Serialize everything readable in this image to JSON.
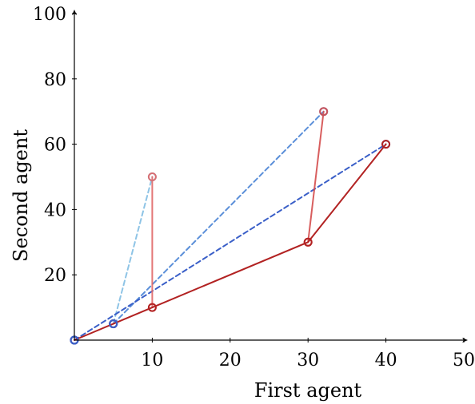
{
  "chart_data": {
    "type": "line",
    "xlabel": "First agent",
    "ylabel": "Second agent",
    "xlim": [
      0,
      50
    ],
    "ylim": [
      0,
      100
    ],
    "x_ticks": [
      10,
      20,
      30,
      40,
      50
    ],
    "y_ticks": [
      20,
      40,
      60,
      80,
      100
    ],
    "grid": false,
    "series": [
      {
        "style": "solid",
        "color": "#b22222",
        "opacity": 1.0,
        "marker": "circle",
        "points": [
          [
            0,
            0
          ],
          [
            5,
            5
          ],
          [
            10,
            10
          ],
          [
            30,
            30
          ],
          [
            40,
            60
          ]
        ]
      },
      {
        "style": "solid",
        "color": "#e06666",
        "opacity": 0.9,
        "marker": "circle",
        "points": [
          [
            10,
            10
          ],
          [
            10,
            50
          ]
        ]
      },
      {
        "style": "solid",
        "color": "#d44d4d",
        "opacity": 0.9,
        "marker": "circle",
        "points": [
          [
            30,
            30
          ],
          [
            32,
            70
          ]
        ]
      },
      {
        "style": "dashed",
        "color": "#8ec4e6",
        "opacity": 1.0,
        "marker": "circle",
        "points": [
          [
            5,
            5
          ],
          [
            10,
            50
          ]
        ]
      },
      {
        "style": "dashed",
        "color": "#5b8fd9",
        "opacity": 1.0,
        "marker": "circle",
        "points": [
          [
            5,
            5
          ],
          [
            32,
            70
          ]
        ]
      },
      {
        "style": "dashed",
        "color": "#3a5fc8",
        "opacity": 1.0,
        "marker": "circle",
        "points": [
          [
            0,
            0
          ],
          [
            40,
            60
          ]
        ]
      }
    ],
    "blue_markers": {
      "color": "#3a5fc8",
      "points": [
        [
          0,
          0
        ],
        [
          5,
          5
        ]
      ]
    }
  }
}
